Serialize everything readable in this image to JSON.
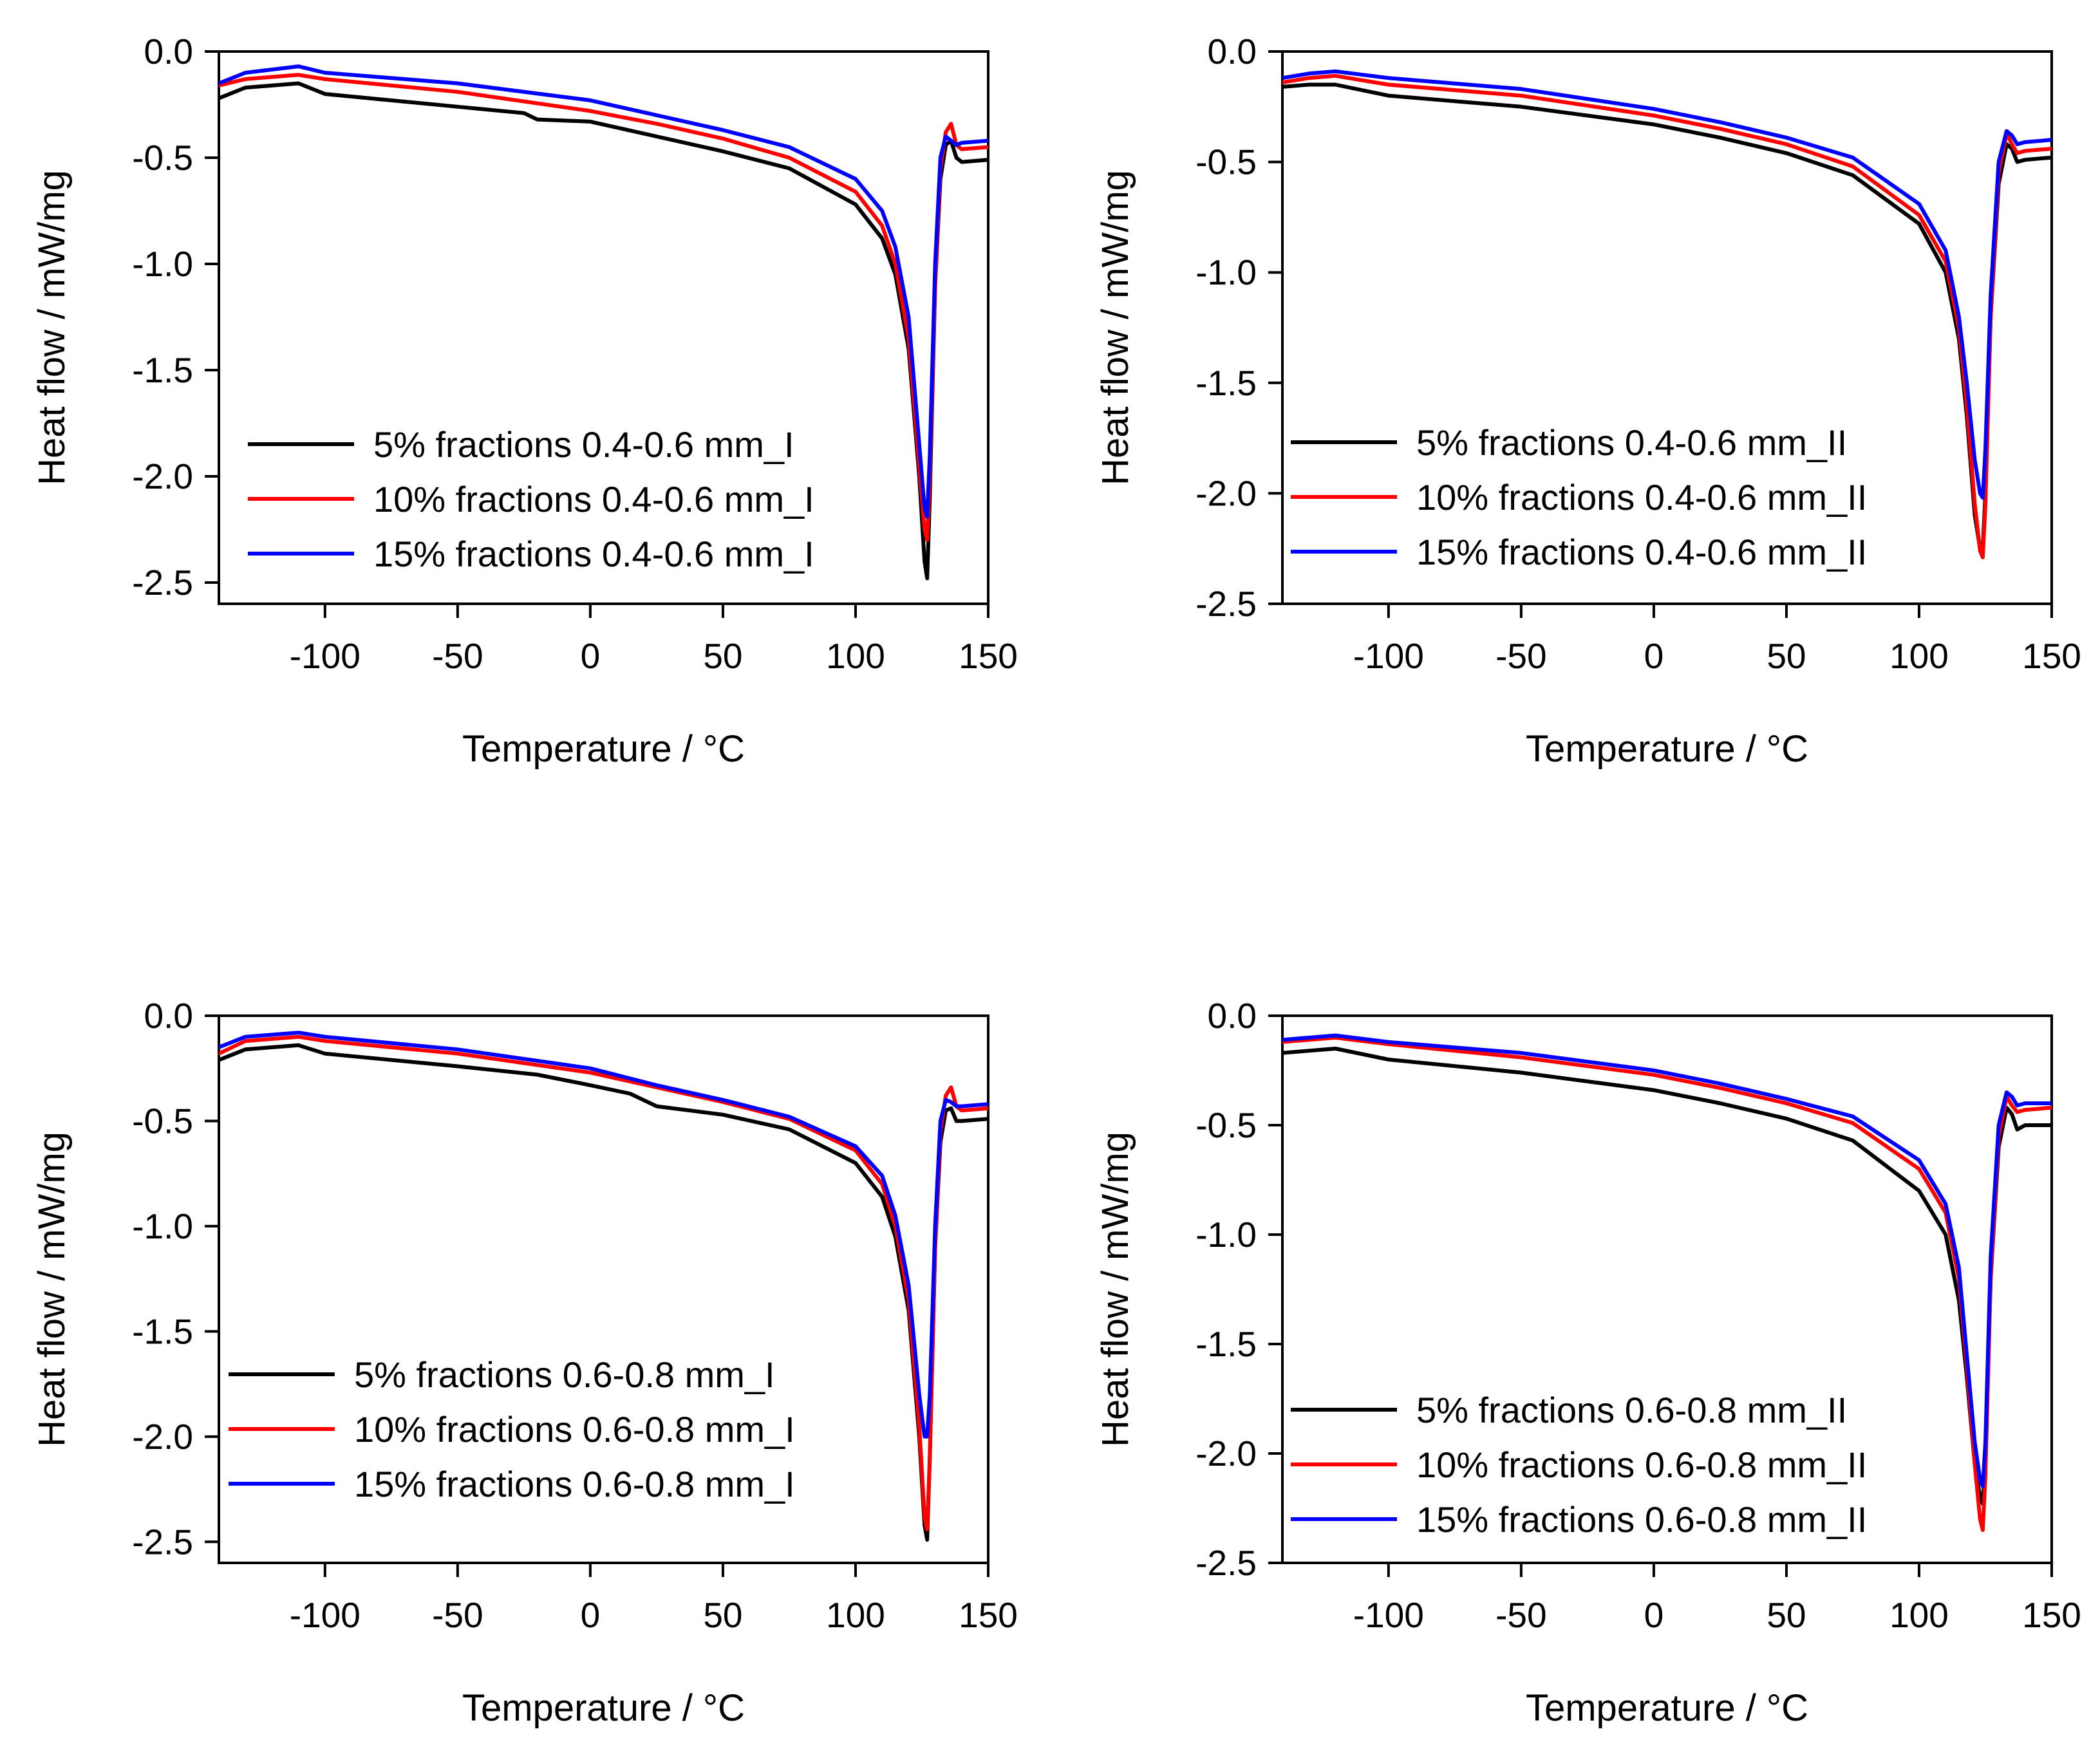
{
  "chart_data": [
    {
      "type": "line",
      "panel": "top-left",
      "xlabel": "Temperature / °C",
      "ylabel": "Heat flow / mW/mg",
      "xlim": [
        -140,
        150
      ],
      "ylim": [
        -2.6,
        0.0
      ],
      "xticks": [
        -100,
        -50,
        0,
        50,
        100,
        150
      ],
      "yticks": [
        0.0,
        -0.5,
        -1.0,
        -1.5,
        -2.0,
        -2.5
      ],
      "ytick_labels": [
        "0.0",
        "-0.5",
        "-1.0",
        "-1.5",
        "-2.0",
        "-2.5"
      ],
      "legend_position": "lower-left",
      "series": [
        {
          "name": "5% fractions 0.4-0.6 mm_I",
          "color": "#000000",
          "x": [
            -140,
            -130,
            -110,
            -100,
            -50,
            -25,
            -20,
            0,
            25,
            50,
            75,
            100,
            110,
            115,
            120,
            124,
            126,
            127,
            128,
            130,
            132,
            134,
            136,
            138,
            140,
            150
          ],
          "y": [
            -0.22,
            -0.17,
            -0.15,
            -0.2,
            -0.26,
            -0.29,
            -0.32,
            -0.33,
            -0.4,
            -0.47,
            -0.55,
            -0.72,
            -0.88,
            -1.05,
            -1.4,
            -2.0,
            -2.4,
            -2.48,
            -2.1,
            -1.1,
            -0.6,
            -0.44,
            -0.42,
            -0.5,
            -0.52,
            -0.51
          ]
        },
        {
          "name": "10% fractions 0.4-0.6 mm_I",
          "color": "#ff0000",
          "x": [
            -140,
            -130,
            -110,
            -100,
            -50,
            0,
            25,
            50,
            75,
            100,
            110,
            115,
            120,
            124,
            126,
            127,
            128,
            130,
            132,
            134,
            136,
            138,
            140,
            150
          ],
          "y": [
            -0.16,
            -0.13,
            -0.11,
            -0.13,
            -0.19,
            -0.28,
            -0.34,
            -0.41,
            -0.5,
            -0.66,
            -0.82,
            -1.0,
            -1.35,
            -1.95,
            -2.25,
            -2.3,
            -2.0,
            -1.1,
            -0.55,
            -0.38,
            -0.34,
            -0.44,
            -0.46,
            -0.45
          ]
        },
        {
          "name": "15% fractions 0.4-0.6 mm_I",
          "color": "#0000ff",
          "x": [
            -140,
            -130,
            -110,
            -100,
            -50,
            0,
            25,
            50,
            75,
            100,
            110,
            115,
            120,
            124,
            126,
            127,
            128,
            130,
            132,
            134,
            136,
            138,
            140,
            150
          ],
          "y": [
            -0.15,
            -0.1,
            -0.07,
            -0.1,
            -0.15,
            -0.23,
            -0.3,
            -0.37,
            -0.45,
            -0.6,
            -0.75,
            -0.92,
            -1.25,
            -1.85,
            -2.15,
            -2.19,
            -1.9,
            -1.0,
            -0.5,
            -0.4,
            -0.42,
            -0.44,
            -0.43,
            -0.42
          ]
        }
      ],
      "annotations": []
    },
    {
      "type": "line",
      "panel": "top-right",
      "xlabel": "Temperature / °C",
      "ylabel": "Heat flow / mW/mg",
      "xlim": [
        -140,
        150
      ],
      "ylim": [
        -2.5,
        0.0
      ],
      "xticks": [
        -100,
        -50,
        0,
        50,
        100,
        150
      ],
      "yticks": [
        0.0,
        -0.5,
        -1.0,
        -1.5,
        -2.0,
        -2.5
      ],
      "ytick_labels": [
        "0.0",
        "-0.5",
        "-1.0",
        "-1.5",
        "-2.0",
        "-2.5"
      ],
      "legend_position": "lower-left",
      "series": [
        {
          "name": "5% fractions 0.4-0.6 mm_II",
          "color": "#000000",
          "x": [
            -140,
            -130,
            -120,
            -100,
            -50,
            0,
            25,
            50,
            75,
            100,
            110,
            115,
            118,
            121,
            123,
            124,
            125,
            127,
            130,
            133,
            135,
            137,
            140,
            150
          ],
          "y": [
            -0.16,
            -0.15,
            -0.15,
            -0.2,
            -0.25,
            -0.33,
            -0.39,
            -0.46,
            -0.56,
            -0.78,
            -1.0,
            -1.3,
            -1.65,
            -2.1,
            -2.25,
            -2.25,
            -2.0,
            -1.2,
            -0.6,
            -0.42,
            -0.44,
            -0.5,
            -0.49,
            -0.48
          ]
        },
        {
          "name": "10% fractions 0.4-0.6 mm_II",
          "color": "#ff0000",
          "x": [
            -140,
            -130,
            -120,
            -100,
            -50,
            0,
            25,
            50,
            75,
            100,
            110,
            115,
            118,
            121,
            123,
            124,
            125,
            127,
            130,
            133,
            135,
            137,
            140,
            150
          ],
          "y": [
            -0.14,
            -0.12,
            -0.11,
            -0.15,
            -0.2,
            -0.29,
            -0.35,
            -0.42,
            -0.52,
            -0.74,
            -0.95,
            -1.25,
            -1.6,
            -2.05,
            -2.26,
            -2.29,
            -2.05,
            -1.2,
            -0.55,
            -0.37,
            -0.42,
            -0.46,
            -0.45,
            -0.44
          ]
        },
        {
          "name": "15% fractions 0.4-0.6 mm_II",
          "color": "#0000ff",
          "x": [
            -140,
            -130,
            -120,
            -100,
            -50,
            0,
            25,
            50,
            75,
            100,
            110,
            115,
            118,
            121,
            123,
            124,
            125,
            127,
            130,
            133,
            135,
            137,
            140,
            150
          ],
          "y": [
            -0.12,
            -0.1,
            -0.09,
            -0.12,
            -0.17,
            -0.26,
            -0.32,
            -0.39,
            -0.48,
            -0.69,
            -0.9,
            -1.2,
            -1.5,
            -1.85,
            -2.0,
            -2.02,
            -1.8,
            -1.1,
            -0.5,
            -0.36,
            -0.38,
            -0.42,
            -0.41,
            -0.4
          ]
        }
      ],
      "annotations": []
    },
    {
      "type": "line",
      "panel": "bottom-left",
      "xlabel": "Temperature / °C",
      "ylabel": "Heat flow / mW/mg",
      "xlim": [
        -140,
        150
      ],
      "ylim": [
        -2.6,
        0.0
      ],
      "xticks": [
        -100,
        -50,
        0,
        50,
        100,
        150
      ],
      "yticks": [
        0.0,
        -0.5,
        -1.0,
        -1.5,
        -2.0,
        -2.5
      ],
      "ytick_labels": [
        "0.0",
        "-0.5",
        "-1.0",
        "-1.5",
        "-2.0",
        "-2.5"
      ],
      "legend_position": "lower-left",
      "series": [
        {
          "name": "5% fractions 0.6-0.8 mm_I",
          "color": "#000000",
          "x": [
            -140,
            -130,
            -110,
            -100,
            -50,
            -20,
            0,
            15,
            20,
            25,
            50,
            75,
            100,
            110,
            115,
            120,
            124,
            126,
            127,
            128,
            130,
            132,
            134,
            136,
            138,
            140,
            150
          ],
          "y": [
            -0.21,
            -0.16,
            -0.14,
            -0.18,
            -0.24,
            -0.28,
            -0.33,
            -0.37,
            -0.4,
            -0.43,
            -0.47,
            -0.54,
            -0.7,
            -0.86,
            -1.05,
            -1.4,
            -2.0,
            -2.42,
            -2.49,
            -2.1,
            -1.1,
            -0.6,
            -0.45,
            -0.44,
            -0.5,
            -0.5,
            -0.49
          ]
        },
        {
          "name": "10% fractions 0.6-0.8 mm_I",
          "color": "#ff0000",
          "x": [
            -140,
            -130,
            -110,
            -100,
            -50,
            0,
            25,
            50,
            75,
            100,
            110,
            115,
            120,
            124,
            126,
            127,
            128,
            130,
            132,
            134,
            136,
            138,
            140,
            150
          ],
          "y": [
            -0.18,
            -0.12,
            -0.1,
            -0.12,
            -0.18,
            -0.27,
            -0.34,
            -0.41,
            -0.49,
            -0.64,
            -0.8,
            -1.0,
            -1.35,
            -1.95,
            -2.38,
            -2.44,
            -2.1,
            -1.1,
            -0.55,
            -0.38,
            -0.34,
            -0.43,
            -0.45,
            -0.44
          ]
        },
        {
          "name": "15% fractions 0.6-0.8 mm_I",
          "color": "#0000ff",
          "x": [
            -140,
            -130,
            -110,
            -100,
            -50,
            0,
            25,
            50,
            75,
            100,
            110,
            115,
            120,
            124,
            126,
            127,
            128,
            130,
            132,
            134,
            136,
            138,
            140,
            150
          ],
          "y": [
            -0.15,
            -0.1,
            -0.08,
            -0.1,
            -0.16,
            -0.25,
            -0.33,
            -0.4,
            -0.48,
            -0.62,
            -0.76,
            -0.95,
            -1.28,
            -1.8,
            -2.0,
            -2.0,
            -1.8,
            -1.0,
            -0.5,
            -0.4,
            -0.41,
            -0.43,
            -0.43,
            -0.42
          ]
        }
      ],
      "annotations": []
    },
    {
      "type": "line",
      "panel": "bottom-right",
      "xlabel": "Temperature / °C",
      "ylabel": "Heat flow / mW/mg",
      "xlim": [
        -140,
        150
      ],
      "ylim": [
        -2.5,
        0.0
      ],
      "xticks": [
        -100,
        -50,
        0,
        50,
        100,
        150
      ],
      "yticks": [
        0.0,
        -0.5,
        -1.0,
        -1.5,
        -2.0,
        -2.5
      ],
      "ytick_labels": [
        "0.0",
        "-0.5",
        "-1.0",
        "-1.5",
        "-2.0",
        "-2.5"
      ],
      "legend_position": "lower-left",
      "series": [
        {
          "name": "5% fractions 0.6-0.8 mm_II",
          "color": "#000000",
          "x": [
            -140,
            -130,
            -120,
            -100,
            -50,
            0,
            25,
            50,
            75,
            100,
            110,
            115,
            118,
            121,
            123,
            124,
            125,
            127,
            130,
            133,
            135,
            137,
            140,
            150
          ],
          "y": [
            -0.17,
            -0.16,
            -0.15,
            -0.2,
            -0.26,
            -0.34,
            -0.4,
            -0.47,
            -0.57,
            -0.8,
            -1.0,
            -1.3,
            -1.65,
            -2.05,
            -2.2,
            -2.23,
            -2.0,
            -1.2,
            -0.6,
            -0.42,
            -0.45,
            -0.52,
            -0.5,
            -0.5
          ]
        },
        {
          "name": "10% fractions 0.6-0.8 mm_II",
          "color": "#ff0000",
          "x": [
            -140,
            -130,
            -120,
            -100,
            -50,
            0,
            25,
            50,
            75,
            100,
            110,
            115,
            118,
            121,
            123,
            124,
            125,
            127,
            130,
            133,
            135,
            137,
            140,
            150
          ],
          "y": [
            -0.12,
            -0.11,
            -0.1,
            -0.13,
            -0.19,
            -0.27,
            -0.33,
            -0.4,
            -0.49,
            -0.7,
            -0.9,
            -1.2,
            -1.6,
            -2.05,
            -2.3,
            -2.35,
            -2.1,
            -1.2,
            -0.55,
            -0.37,
            -0.41,
            -0.44,
            -0.43,
            -0.42
          ]
        },
        {
          "name": "15% fractions 0.6-0.8 mm_II",
          "color": "#0000ff",
          "x": [
            -140,
            -130,
            -120,
            -100,
            -50,
            0,
            25,
            50,
            75,
            100,
            110,
            115,
            118,
            121,
            123,
            124,
            125,
            127,
            130,
            133,
            135,
            137,
            140,
            150
          ],
          "y": [
            -0.11,
            -0.1,
            -0.09,
            -0.12,
            -0.17,
            -0.25,
            -0.31,
            -0.38,
            -0.46,
            -0.66,
            -0.86,
            -1.15,
            -1.55,
            -1.95,
            -2.12,
            -2.15,
            -1.95,
            -1.1,
            -0.5,
            -0.35,
            -0.37,
            -0.41,
            -0.4,
            -0.4
          ]
        }
      ],
      "annotations": []
    }
  ]
}
